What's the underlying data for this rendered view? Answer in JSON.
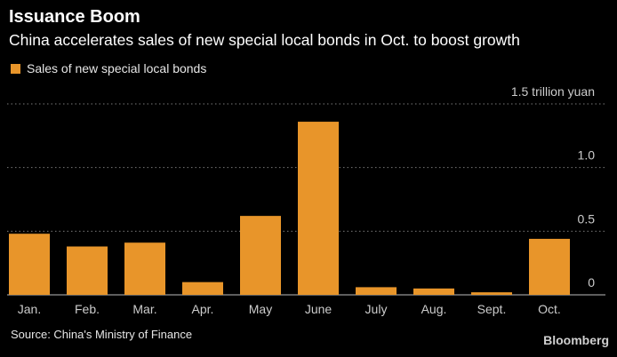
{
  "title": "Issuance Boom",
  "subtitle": "China accelerates sales of new special local bonds in Oct. to boost growth",
  "source": "Source: China's Ministry of Finance",
  "brand": "Bloomberg",
  "colors": {
    "background": "#000000",
    "bar": "#e8952a",
    "grid": "#7a7a7a",
    "text": "#ffffff",
    "axis": "#cccccc"
  },
  "chart_data": {
    "type": "bar",
    "title": "Issuance Boom",
    "subtitle": "China accelerates sales of new special local bonds in Oct. to boost growth",
    "categories": [
      "Jan.",
      "Feb.",
      "Mar.",
      "Apr.",
      "May",
      "June",
      "July",
      "Aug.",
      "Sept.",
      "Oct."
    ],
    "series": [
      {
        "name": "Sales of new special local bonds",
        "values": [
          0.48,
          0.38,
          0.41,
          0.1,
          0.62,
          1.36,
          0.06,
          0.05,
          0.02,
          0.44
        ]
      }
    ],
    "xlabel": "",
    "ylabel": "trillion yuan",
    "ylim": [
      0,
      1.5
    ],
    "y_ticks": [
      0,
      0.5,
      1.0,
      1.5
    ],
    "y_tick_labels": [
      "0",
      "0.5",
      "1.0",
      "1.5 trillion yuan"
    ],
    "grid": true,
    "legend_position": "top-left"
  }
}
